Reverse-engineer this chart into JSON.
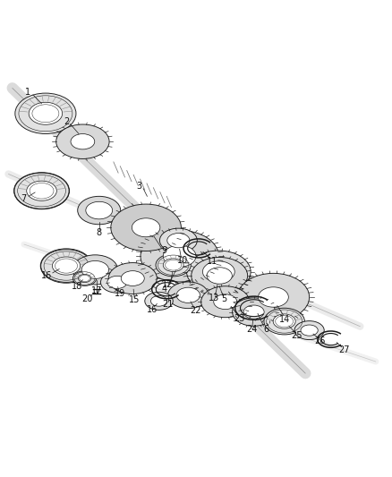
{
  "bg_color": "#ffffff",
  "line_color": "#1a1a1a",
  "gear_fill": "#d8d8d8",
  "bearing_fill": "#e2e2e2",
  "shaft_color": "#c0c0c0",
  "label_fontsize": 7,
  "fig_width": 4.38,
  "fig_height": 5.33,
  "dpi": 100
}
